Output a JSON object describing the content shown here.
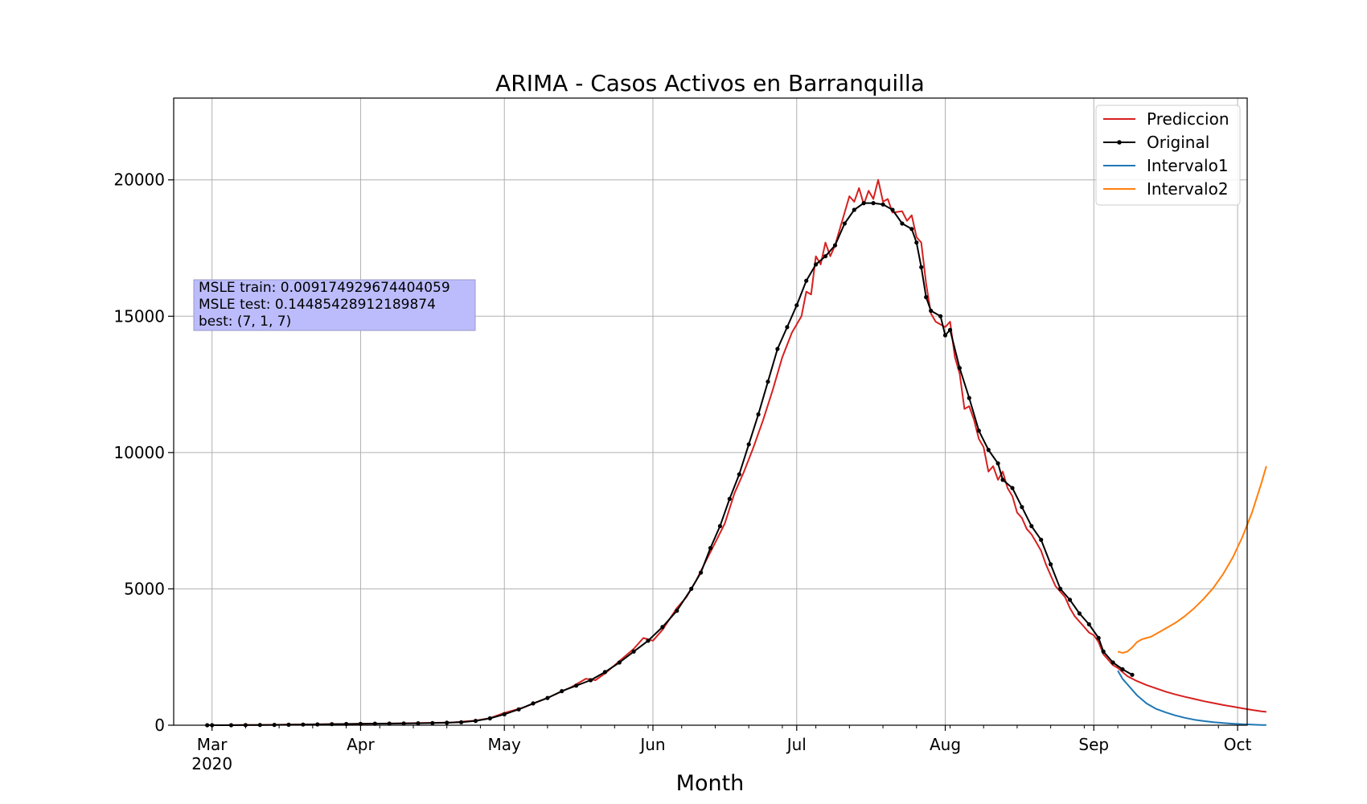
{
  "chart_data": {
    "type": "line",
    "title": "ARIMA - Casos Activos en Barranquilla",
    "xlabel": "Month",
    "ylabel": "",
    "xlim": [
      "2020-02-22",
      "2020-10-03"
    ],
    "ylim": [
      0,
      23000
    ],
    "grid": true,
    "legend_position": "top-right",
    "x_ticks": [
      {
        "date": "2020-03-01",
        "label": "Mar",
        "sublabel": "2020"
      },
      {
        "date": "2020-04-01",
        "label": "Apr"
      },
      {
        "date": "2020-05-01",
        "label": "May"
      },
      {
        "date": "2020-06-01",
        "label": "Jun"
      },
      {
        "date": "2020-07-01",
        "label": "Jul"
      },
      {
        "date": "2020-08-01",
        "label": "Aug"
      },
      {
        "date": "2020-09-01",
        "label": "Sep"
      },
      {
        "date": "2020-10-01",
        "label": "Oct"
      }
    ],
    "y_ticks": [
      0,
      5000,
      10000,
      15000,
      20000
    ],
    "annotation": {
      "lines": [
        "MSLE train: 0.009174929674404059",
        "MSLE test: 0.14485428912189874",
        "best: (7, 1, 7)"
      ],
      "position": "upper-left"
    },
    "series": [
      {
        "name": "Prediccion",
        "color": "#d62020",
        "marker": false,
        "points": [
          [
            "2020-02-29",
            0
          ],
          [
            "2020-03-10",
            10
          ],
          [
            "2020-03-20",
            30
          ],
          [
            "2020-04-01",
            50
          ],
          [
            "2020-04-10",
            70
          ],
          [
            "2020-04-20",
            100
          ],
          [
            "2020-04-25",
            170
          ],
          [
            "2020-04-28",
            260
          ],
          [
            "2020-05-01",
            450
          ],
          [
            "2020-05-05",
            650
          ],
          [
            "2020-05-10",
            1000
          ],
          [
            "2020-05-15",
            1400
          ],
          [
            "2020-05-18",
            1700
          ],
          [
            "2020-05-20",
            1650
          ],
          [
            "2020-05-22",
            1900
          ],
          [
            "2020-05-25",
            2350
          ],
          [
            "2020-05-28",
            2800
          ],
          [
            "2020-05-30",
            3200
          ],
          [
            "2020-06-01",
            3100
          ],
          [
            "2020-06-03",
            3500
          ],
          [
            "2020-06-06",
            4300
          ],
          [
            "2020-06-08",
            4700
          ],
          [
            "2020-06-10",
            5300
          ],
          [
            "2020-06-12",
            6000
          ],
          [
            "2020-06-14",
            6700
          ],
          [
            "2020-06-16",
            7400
          ],
          [
            "2020-06-18",
            8500
          ],
          [
            "2020-06-20",
            9300
          ],
          [
            "2020-06-22",
            10200
          ],
          [
            "2020-06-24",
            11200
          ],
          [
            "2020-06-26",
            12300
          ],
          [
            "2020-06-28",
            13500
          ],
          [
            "2020-06-30",
            14400
          ],
          [
            "2020-07-02",
            15000
          ],
          [
            "2020-07-03",
            15900
          ],
          [
            "2020-07-04",
            15800
          ],
          [
            "2020-07-05",
            17200
          ],
          [
            "2020-07-06",
            16900
          ],
          [
            "2020-07-07",
            17700
          ],
          [
            "2020-07-08",
            17200
          ],
          [
            "2020-07-09",
            17600
          ],
          [
            "2020-07-10",
            18200
          ],
          [
            "2020-07-11",
            18800
          ],
          [
            "2020-07-12",
            19400
          ],
          [
            "2020-07-13",
            19200
          ],
          [
            "2020-07-14",
            19700
          ],
          [
            "2020-07-15",
            19100
          ],
          [
            "2020-07-16",
            19600
          ],
          [
            "2020-07-17",
            19300
          ],
          [
            "2020-07-18",
            20000
          ],
          [
            "2020-07-19",
            19200
          ],
          [
            "2020-07-20",
            19300
          ],
          [
            "2020-07-21",
            18800
          ],
          [
            "2020-07-23",
            18850
          ],
          [
            "2020-07-24",
            18500
          ],
          [
            "2020-07-25",
            18700
          ],
          [
            "2020-07-26",
            17900
          ],
          [
            "2020-07-27",
            17700
          ],
          [
            "2020-07-28",
            16200
          ],
          [
            "2020-07-29",
            15100
          ],
          [
            "2020-07-30",
            14800
          ],
          [
            "2020-07-31",
            14700
          ],
          [
            "2020-08-01",
            14600
          ],
          [
            "2020-08-02",
            14800
          ],
          [
            "2020-08-03",
            13500
          ],
          [
            "2020-08-04",
            12900
          ],
          [
            "2020-08-05",
            11600
          ],
          [
            "2020-08-06",
            11700
          ],
          [
            "2020-08-07",
            11200
          ],
          [
            "2020-08-08",
            10500
          ],
          [
            "2020-08-09",
            10200
          ],
          [
            "2020-08-10",
            9300
          ],
          [
            "2020-08-11",
            9500
          ],
          [
            "2020-08-12",
            9000
          ],
          [
            "2020-08-13",
            9300
          ],
          [
            "2020-08-14",
            8700
          ],
          [
            "2020-08-15",
            8400
          ],
          [
            "2020-08-16",
            7800
          ],
          [
            "2020-08-17",
            7600
          ],
          [
            "2020-08-18",
            7200
          ],
          [
            "2020-08-19",
            7000
          ],
          [
            "2020-08-20",
            6700
          ],
          [
            "2020-08-21",
            6400
          ],
          [
            "2020-08-22",
            5900
          ],
          [
            "2020-08-23",
            5500
          ],
          [
            "2020-08-24",
            5100
          ],
          [
            "2020-08-25",
            4900
          ],
          [
            "2020-08-26",
            4700
          ],
          [
            "2020-08-27",
            4300
          ],
          [
            "2020-08-28",
            4000
          ],
          [
            "2020-08-29",
            3800
          ],
          [
            "2020-08-30",
            3600
          ],
          [
            "2020-08-31",
            3400
          ],
          [
            "2020-09-01",
            3300
          ],
          [
            "2020-09-02",
            3050
          ],
          [
            "2020-09-03",
            2600
          ],
          [
            "2020-09-04",
            2400
          ],
          [
            "2020-09-05",
            2200
          ],
          [
            "2020-09-06",
            2100
          ],
          [
            "2020-09-07",
            1950
          ],
          [
            "2020-09-08",
            1800
          ],
          [
            "2020-09-10",
            1620
          ],
          [
            "2020-09-12",
            1470
          ],
          [
            "2020-09-14",
            1350
          ],
          [
            "2020-09-16",
            1230
          ],
          [
            "2020-09-18",
            1130
          ],
          [
            "2020-09-20",
            1040
          ],
          [
            "2020-09-22",
            960
          ],
          [
            "2020-09-24",
            880
          ],
          [
            "2020-09-26",
            810
          ],
          [
            "2020-09-28",
            740
          ],
          [
            "2020-09-30",
            680
          ],
          [
            "2020-10-02",
            620
          ],
          [
            "2020-10-04",
            560
          ],
          [
            "2020-10-06",
            510
          ],
          [
            "2020-10-07",
            490
          ]
        ]
      },
      {
        "name": "Original",
        "color": "#000000",
        "marker": true,
        "points": [
          [
            "2020-02-29",
            0
          ],
          [
            "2020-03-01",
            0
          ],
          [
            "2020-03-05",
            0
          ],
          [
            "2020-03-08",
            5
          ],
          [
            "2020-03-11",
            8
          ],
          [
            "2020-03-14",
            12
          ],
          [
            "2020-03-17",
            18
          ],
          [
            "2020-03-20",
            25
          ],
          [
            "2020-03-23",
            30
          ],
          [
            "2020-03-26",
            38
          ],
          [
            "2020-03-29",
            45
          ],
          [
            "2020-04-01",
            50
          ],
          [
            "2020-04-04",
            55
          ],
          [
            "2020-04-07",
            60
          ],
          [
            "2020-04-10",
            65
          ],
          [
            "2020-04-13",
            72
          ],
          [
            "2020-04-16",
            80
          ],
          [
            "2020-04-19",
            90
          ],
          [
            "2020-04-22",
            110
          ],
          [
            "2020-04-25",
            160
          ],
          [
            "2020-04-28",
            250
          ],
          [
            "2020-05-01",
            400
          ],
          [
            "2020-05-04",
            580
          ],
          [
            "2020-05-07",
            800
          ],
          [
            "2020-05-10",
            1000
          ],
          [
            "2020-05-13",
            1250
          ],
          [
            "2020-05-16",
            1450
          ],
          [
            "2020-05-19",
            1650
          ],
          [
            "2020-05-22",
            1950
          ],
          [
            "2020-05-25",
            2300
          ],
          [
            "2020-05-28",
            2700
          ],
          [
            "2020-05-31",
            3100
          ],
          [
            "2020-06-03",
            3600
          ],
          [
            "2020-06-06",
            4200
          ],
          [
            "2020-06-09",
            5000
          ],
          [
            "2020-06-11",
            5600
          ],
          [
            "2020-06-13",
            6500
          ],
          [
            "2020-06-15",
            7300
          ],
          [
            "2020-06-17",
            8300
          ],
          [
            "2020-06-19",
            9200
          ],
          [
            "2020-06-21",
            10300
          ],
          [
            "2020-06-23",
            11400
          ],
          [
            "2020-06-25",
            12600
          ],
          [
            "2020-06-27",
            13800
          ],
          [
            "2020-06-29",
            14600
          ],
          [
            "2020-07-01",
            15400
          ],
          [
            "2020-07-03",
            16300
          ],
          [
            "2020-07-05",
            16900
          ],
          [
            "2020-07-07",
            17200
          ],
          [
            "2020-07-09",
            17600
          ],
          [
            "2020-07-11",
            18400
          ],
          [
            "2020-07-13",
            18900
          ],
          [
            "2020-07-15",
            19150
          ],
          [
            "2020-07-17",
            19150
          ],
          [
            "2020-07-19",
            19100
          ],
          [
            "2020-07-21",
            18900
          ],
          [
            "2020-07-23",
            18400
          ],
          [
            "2020-07-25",
            18200
          ],
          [
            "2020-07-26",
            17700
          ],
          [
            "2020-07-27",
            16800
          ],
          [
            "2020-07-28",
            15700
          ],
          [
            "2020-07-29",
            15200
          ],
          [
            "2020-07-31",
            15000
          ],
          [
            "2020-08-01",
            14300
          ],
          [
            "2020-08-02",
            14500
          ],
          [
            "2020-08-04",
            13100
          ],
          [
            "2020-08-06",
            12000
          ],
          [
            "2020-08-08",
            10800
          ],
          [
            "2020-08-10",
            10100
          ],
          [
            "2020-08-12",
            9600
          ],
          [
            "2020-08-13",
            9000
          ],
          [
            "2020-08-15",
            8700
          ],
          [
            "2020-08-17",
            8000
          ],
          [
            "2020-08-19",
            7300
          ],
          [
            "2020-08-21",
            6800
          ],
          [
            "2020-08-23",
            5900
          ],
          [
            "2020-08-25",
            5000
          ],
          [
            "2020-08-27",
            4600
          ],
          [
            "2020-08-29",
            4100
          ],
          [
            "2020-08-31",
            3700
          ],
          [
            "2020-09-02",
            3200
          ],
          [
            "2020-09-03",
            2700
          ],
          [
            "2020-09-05",
            2300
          ],
          [
            "2020-09-07",
            2050
          ],
          [
            "2020-09-09",
            1850
          ]
        ]
      },
      {
        "name": "Intervalo1",
        "color": "#1f77b4",
        "marker": false,
        "points": [
          [
            "2020-09-06",
            2000
          ],
          [
            "2020-09-07",
            1700
          ],
          [
            "2020-09-08",
            1500
          ],
          [
            "2020-09-10",
            1100
          ],
          [
            "2020-09-12",
            800
          ],
          [
            "2020-09-14",
            600
          ],
          [
            "2020-09-16",
            470
          ],
          [
            "2020-09-18",
            360
          ],
          [
            "2020-09-20",
            270
          ],
          [
            "2020-09-22",
            200
          ],
          [
            "2020-09-24",
            150
          ],
          [
            "2020-09-26",
            110
          ],
          [
            "2020-09-28",
            80
          ],
          [
            "2020-09-30",
            55
          ],
          [
            "2020-10-02",
            35
          ],
          [
            "2020-10-04",
            20
          ],
          [
            "2020-10-06",
            10
          ],
          [
            "2020-10-07",
            5
          ]
        ]
      },
      {
        "name": "Intervalo2",
        "color": "#ff7f0e",
        "marker": false,
        "points": [
          [
            "2020-09-06",
            2700
          ],
          [
            "2020-09-07",
            2650
          ],
          [
            "2020-09-08",
            2700
          ],
          [
            "2020-09-09",
            2850
          ],
          [
            "2020-09-10",
            3050
          ],
          [
            "2020-09-11",
            3150
          ],
          [
            "2020-09-12",
            3200
          ],
          [
            "2020-09-13",
            3250
          ],
          [
            "2020-09-14",
            3350
          ],
          [
            "2020-09-16",
            3550
          ],
          [
            "2020-09-18",
            3750
          ],
          [
            "2020-09-20",
            4000
          ],
          [
            "2020-09-22",
            4300
          ],
          [
            "2020-09-24",
            4650
          ],
          [
            "2020-09-26",
            5050
          ],
          [
            "2020-09-28",
            5550
          ],
          [
            "2020-09-30",
            6150
          ],
          [
            "2020-10-02",
            6900
          ],
          [
            "2020-10-04",
            7800
          ],
          [
            "2020-10-06",
            8900
          ],
          [
            "2020-10-07",
            9500
          ]
        ]
      }
    ]
  }
}
